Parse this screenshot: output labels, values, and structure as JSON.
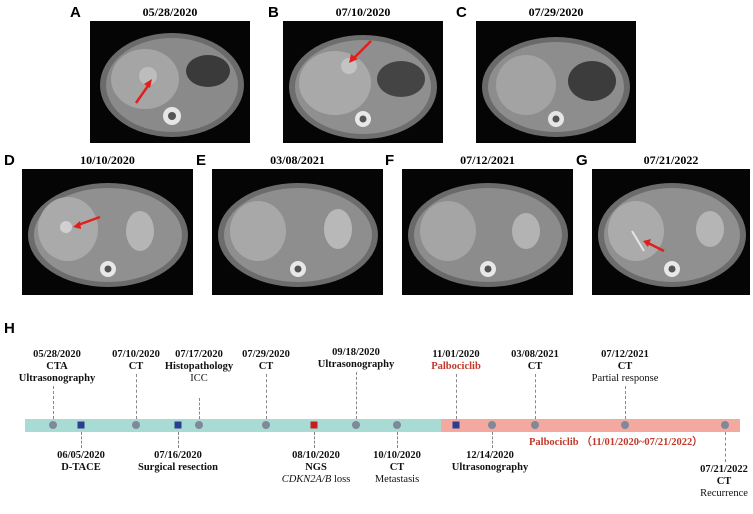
{
  "panels": [
    {
      "letter": "A",
      "date": "05/28/2020",
      "arrow": true
    },
    {
      "letter": "B",
      "date": "07/10/2020",
      "arrow": true
    },
    {
      "letter": "C",
      "date": "07/29/2020",
      "arrow": false
    },
    {
      "letter": "D",
      "date": "10/10/2020",
      "arrow": true
    },
    {
      "letter": "E",
      "date": "03/08/2021",
      "arrow": false
    },
    {
      "letter": "F",
      "date": "07/12/2021",
      "arrow": false
    },
    {
      "letter": "G",
      "date": "07/21/2022",
      "arrow": true
    }
  ],
  "timeline": {
    "letter": "H",
    "colors": {
      "before": "#a8dbd3",
      "after": "#f4a9a0",
      "dot": "#7e8a99",
      "blue": "#2c3e8f",
      "red": "#c81e1e",
      "text_red": "#c0392b"
    },
    "top_events": [
      {
        "date": "05/28/2020",
        "line1": "CTA",
        "line2": "Ultrasonography"
      },
      {
        "date": "07/10/2020",
        "line1": "CT",
        "line2": ""
      },
      {
        "date": "07/17/2020",
        "line1": "Histopathology",
        "line2": "ICC"
      },
      {
        "date": "07/29/2020",
        "line1": "CT",
        "line2": ""
      },
      {
        "date": "09/18/2020",
        "line1": "Ultrasonography",
        "line2": ""
      },
      {
        "date": "11/01/2020",
        "line1": "Palbociclib",
        "line2": ""
      },
      {
        "date": "03/08/2021",
        "line1": "CT",
        "line2": ""
      },
      {
        "date": "07/12/2021",
        "line1": "CT",
        "line2": "Partial response"
      }
    ],
    "bottom_events": [
      {
        "date": "06/05/2020",
        "line1": "D-TACE",
        "line2": ""
      },
      {
        "date": "07/16/2020",
        "line1": "Surgical resection",
        "line2": ""
      },
      {
        "date": "08/10/2020",
        "line1": "NGS",
        "line2_it": "CDKN2A/B",
        "line2_rest": " loss"
      },
      {
        "date": "10/10/2020",
        "line1": "CT",
        "line2": "Metastasis"
      },
      {
        "date": "12/14/2020",
        "line1": "Ultrasonography",
        "line2": ""
      },
      {
        "date": "07/21/2022",
        "line1": "CT",
        "line2": "Recurrence"
      }
    ],
    "period_label": "Palbociclib （11/01/2020~07/21/2022）"
  }
}
